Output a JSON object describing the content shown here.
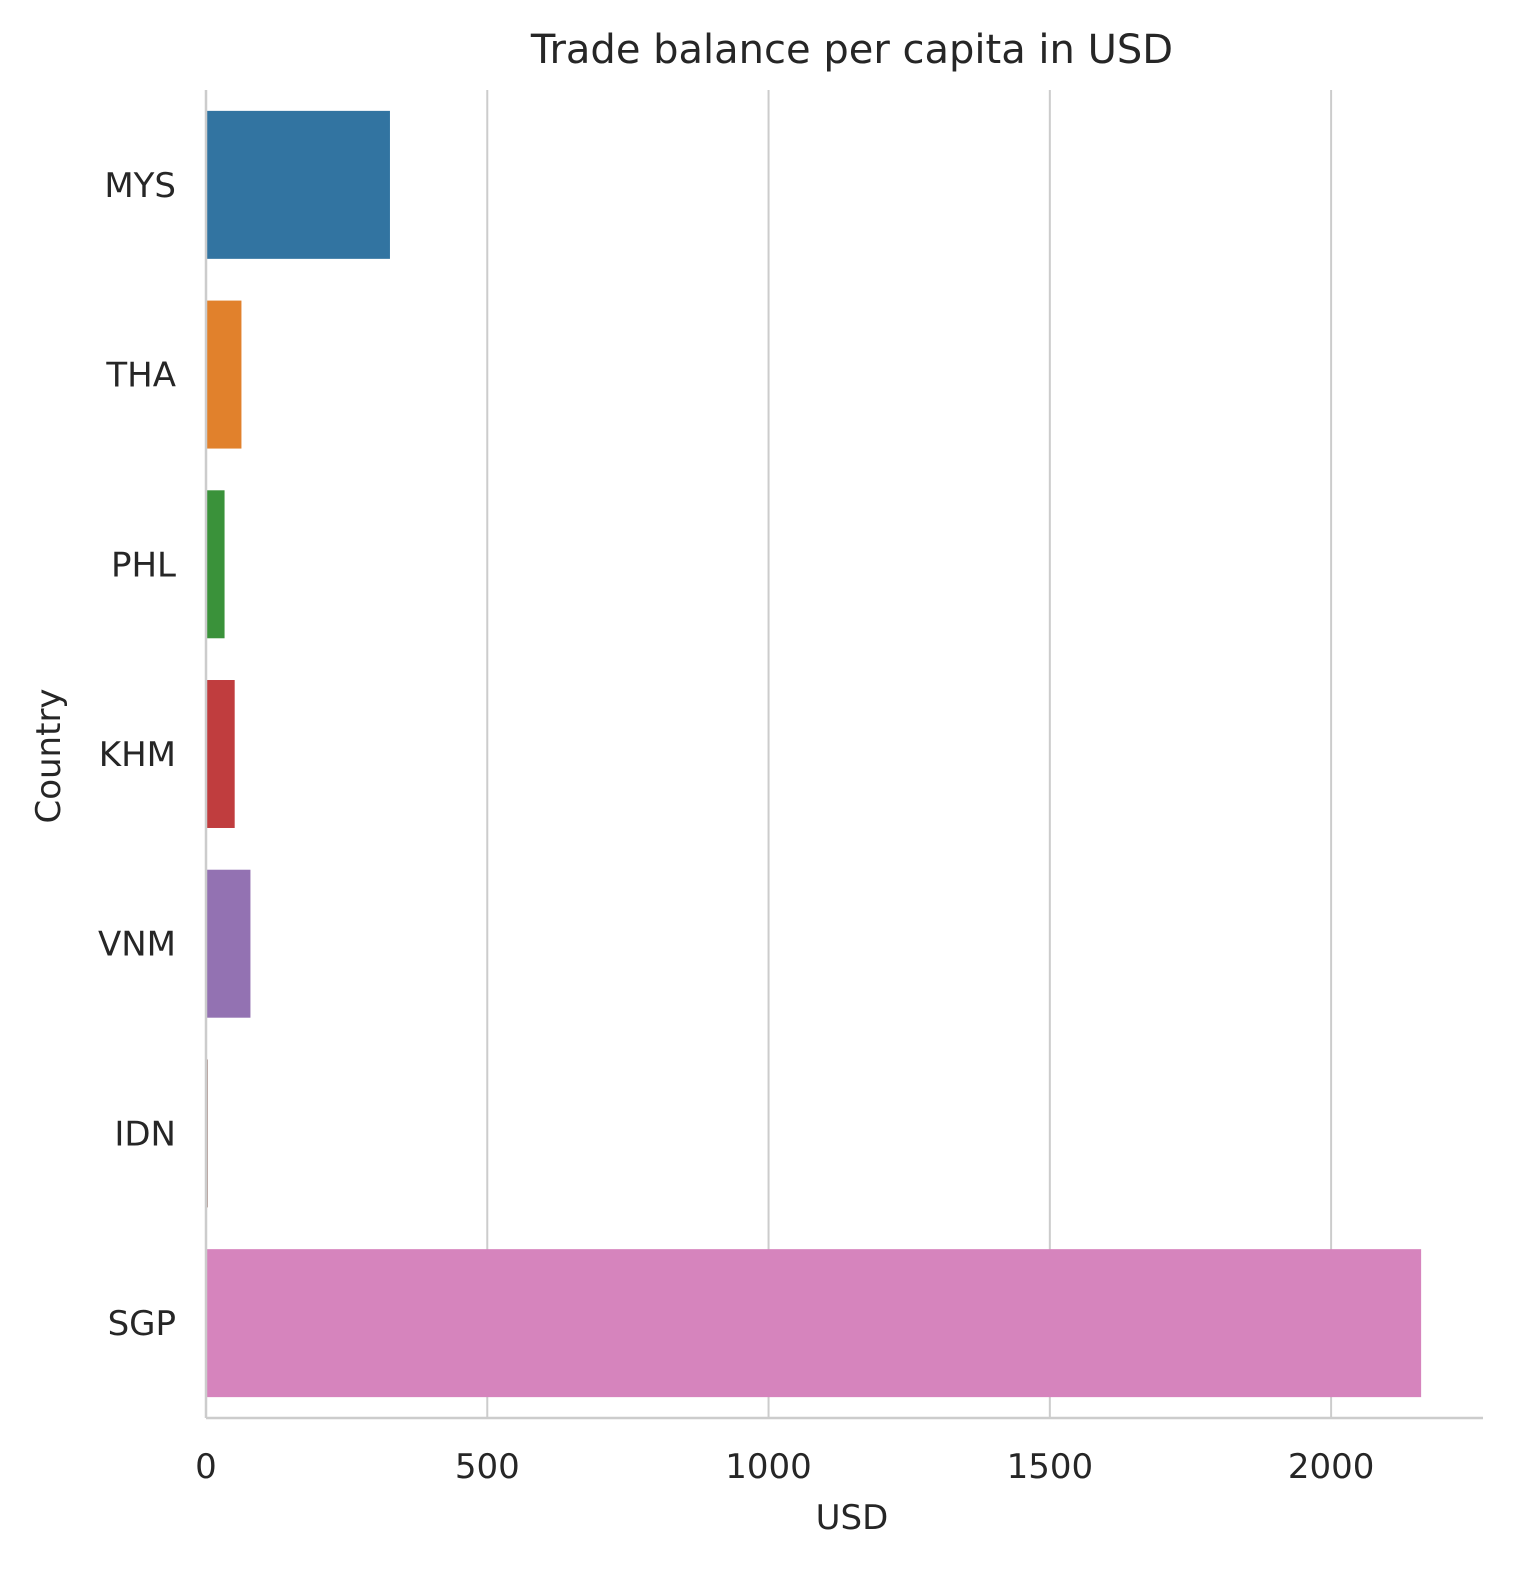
{
  "chart_data": {
    "type": "bar",
    "orientation": "horizontal",
    "title": "Trade balance per capita in USD",
    "xlabel": "USD",
    "ylabel": "Country",
    "categories": [
      "MYS",
      "THA",
      "PHL",
      "KHM",
      "VNM",
      "IDN",
      "SGP"
    ],
    "values": [
      327,
      63,
      33,
      51,
      79,
      3,
      2160
    ],
    "colors": [
      "#3274a1",
      "#e1812c",
      "#3a923a",
      "#c03d3e",
      "#9372b2",
      "#845b53",
      "#d684bd"
    ],
    "xlim": [
      0,
      2270
    ],
    "xticks": [
      0,
      500,
      1000,
      1500,
      2000
    ],
    "grid": "vertical"
  }
}
